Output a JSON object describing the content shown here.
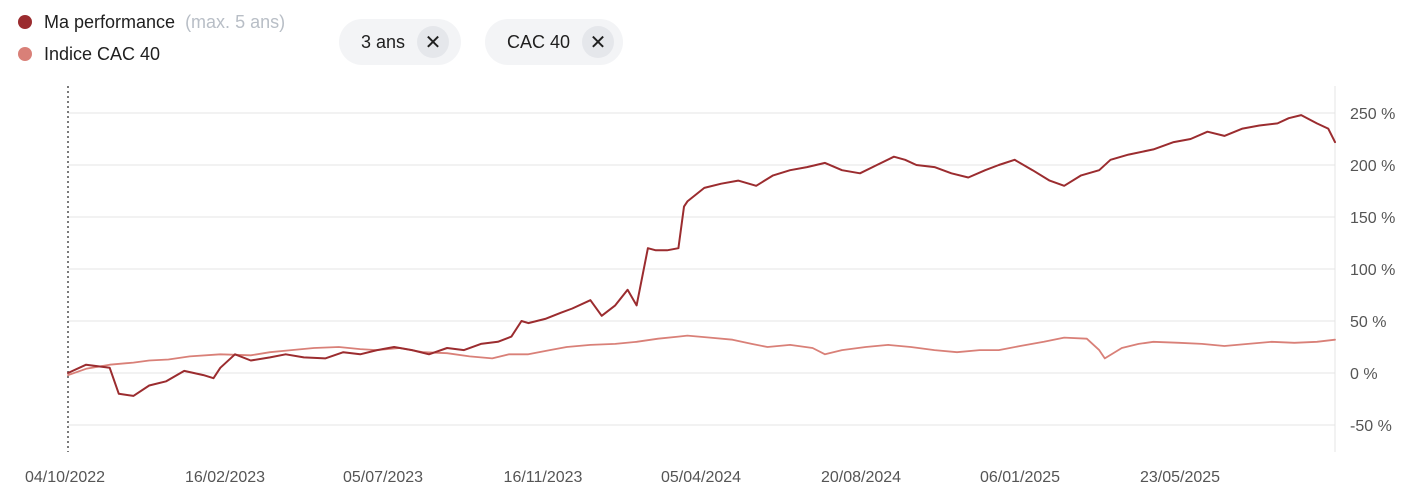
{
  "legend": {
    "series1_label": "Ma performance",
    "series1_note": "(max. 5 ans)",
    "series2_label": "Indice CAC 40"
  },
  "filters": {
    "period_label": "3 ans",
    "index_label": "CAC 40",
    "remove_icon": "close-icon"
  },
  "colors": {
    "performance": "#9b2c2f",
    "index": "#d98078",
    "grid": "#e4e4e4",
    "axis_text": "#555555"
  },
  "chart_data": {
    "type": "line",
    "ylim": [
      -60,
      260
    ],
    "yticks": [
      {
        "value": 250,
        "label": "250 %"
      },
      {
        "value": 200,
        "label": "200 %"
      },
      {
        "value": 150,
        "label": "150 %"
      },
      {
        "value": 100,
        "label": "100 %"
      },
      {
        "value": 50,
        "label": "50 %"
      },
      {
        "value": 0,
        "label": "0 %"
      },
      {
        "value": -50,
        "label": "-50 %"
      }
    ],
    "xlim": [
      "2022-10-04",
      "2025-10-31"
    ],
    "xticks": [
      "04/10/2022",
      "16/02/2023",
      "05/07/2023",
      "16/11/2023",
      "05/04/2024",
      "20/08/2024",
      "06/01/2025",
      "23/05/2025"
    ],
    "grid": true,
    "series": [
      {
        "name": "Ma performance",
        "x": [
          "2022-10-04",
          "2022-10-20",
          "2022-11-10",
          "2022-11-18",
          "2022-12-01",
          "2022-12-15",
          "2022-12-30",
          "2023-01-15",
          "2023-02-01",
          "2023-02-10",
          "2023-02-16",
          "2023-03-01",
          "2023-03-15",
          "2023-04-01",
          "2023-04-15",
          "2023-05-01",
          "2023-05-20",
          "2023-06-05",
          "2023-06-20",
          "2023-07-05",
          "2023-07-20",
          "2023-08-05",
          "2023-08-20",
          "2023-09-05",
          "2023-09-20",
          "2023-10-05",
          "2023-10-20",
          "2023-11-01",
          "2023-11-10",
          "2023-11-16",
          "2023-12-01",
          "2023-12-15",
          "2023-12-25",
          "2024-01-10",
          "2024-01-20",
          "2024-02-01",
          "2024-02-12",
          "2024-02-20",
          "2024-03-01",
          "2024-03-08",
          "2024-03-18",
          "2024-03-28",
          "2024-04-02",
          "2024-04-05",
          "2024-04-20",
          "2024-05-05",
          "2024-05-20",
          "2024-06-05",
          "2024-06-20",
          "2024-07-05",
          "2024-07-20",
          "2024-08-05",
          "2024-08-20",
          "2024-09-05",
          "2024-09-20",
          "2024-10-05",
          "2024-10-15",
          "2024-10-25",
          "2024-11-10",
          "2024-11-25",
          "2024-12-10",
          "2024-12-25",
          "2025-01-06",
          "2025-01-20",
          "2025-02-05",
          "2025-02-20",
          "2025-03-05",
          "2025-03-20",
          "2025-04-05",
          "2025-04-15",
          "2025-05-01",
          "2025-05-23",
          "2025-06-10",
          "2025-06-25",
          "2025-07-10",
          "2025-07-25",
          "2025-08-10",
          "2025-08-25",
          "2025-09-10",
          "2025-09-20",
          "2025-10-01",
          "2025-10-15",
          "2025-10-25",
          "2025-10-31"
        ],
        "values": [
          0,
          8,
          5,
          -20,
          -22,
          -12,
          -8,
          2,
          -2,
          -5,
          5,
          18,
          12,
          15,
          18,
          15,
          14,
          20,
          18,
          22,
          25,
          22,
          18,
          24,
          22,
          28,
          30,
          35,
          50,
          48,
          52,
          58,
          62,
          70,
          55,
          65,
          80,
          65,
          120,
          118,
          118,
          120,
          160,
          165,
          178,
          182,
          185,
          180,
          190,
          195,
          198,
          202,
          195,
          192,
          200,
          208,
          205,
          200,
          198,
          192,
          188,
          195,
          200,
          205,
          195,
          185,
          180,
          190,
          195,
          205,
          210,
          215,
          222,
          225,
          232,
          228,
          235,
          238,
          240,
          245,
          248,
          240,
          235,
          222
        ]
      },
      {
        "name": "Indice CAC 40",
        "x": [
          "2022-10-04",
          "2022-10-20",
          "2022-11-10",
          "2022-12-01",
          "2022-12-15",
          "2023-01-01",
          "2023-01-20",
          "2023-02-16",
          "2023-03-15",
          "2023-04-01",
          "2023-04-20",
          "2023-05-10",
          "2023-06-01",
          "2023-06-20",
          "2023-07-05",
          "2023-07-25",
          "2023-08-15",
          "2023-09-05",
          "2023-09-25",
          "2023-10-15",
          "2023-10-30",
          "2023-11-16",
          "2023-12-05",
          "2023-12-20",
          "2024-01-10",
          "2024-02-01",
          "2024-02-20",
          "2024-03-10",
          "2024-03-28",
          "2024-04-05",
          "2024-04-25",
          "2024-05-15",
          "2024-06-01",
          "2024-06-15",
          "2024-07-05",
          "2024-07-25",
          "2024-08-05",
          "2024-08-20",
          "2024-09-10",
          "2024-09-30",
          "2024-10-20",
          "2024-11-10",
          "2024-11-30",
          "2024-12-20",
          "2025-01-06",
          "2025-01-25",
          "2025-02-15",
          "2025-03-05",
          "2025-03-25",
          "2025-04-05",
          "2025-04-10",
          "2025-04-25",
          "2025-05-10",
          "2025-05-23",
          "2025-06-15",
          "2025-07-05",
          "2025-07-25",
          "2025-08-15",
          "2025-09-05",
          "2025-09-25",
          "2025-10-15",
          "2025-10-31"
        ],
        "values": [
          -2,
          4,
          8,
          10,
          12,
          13,
          16,
          18,
          17,
          20,
          22,
          24,
          25,
          23,
          22,
          24,
          20,
          19,
          16,
          14,
          18,
          18,
          22,
          25,
          27,
          28,
          30,
          33,
          35,
          36,
          34,
          32,
          28,
          25,
          27,
          24,
          18,
          22,
          25,
          27,
          25,
          22,
          20,
          22,
          22,
          26,
          30,
          34,
          33,
          22,
          14,
          24,
          28,
          30,
          29,
          28,
          26,
          28,
          30,
          29,
          30,
          32
        ]
      }
    ]
  }
}
